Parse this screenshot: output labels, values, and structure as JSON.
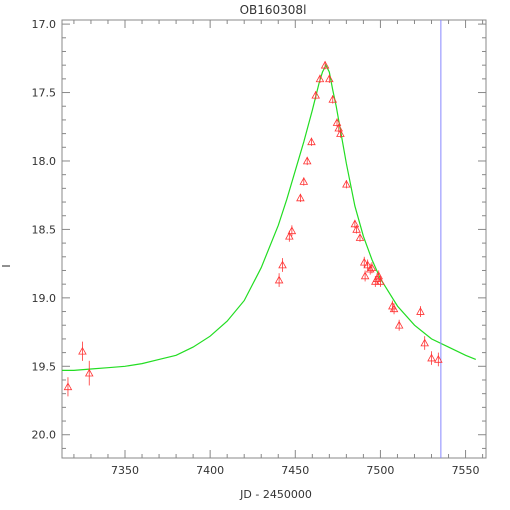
{
  "chart_data": {
    "type": "scatter",
    "title": "OB160308l",
    "xlabel": "JD - 2450000",
    "ylabel": "I",
    "xlim": [
      7313,
      7562
    ],
    "ylim": [
      20.17,
      16.97
    ],
    "y_inverted": true,
    "grid": false,
    "x_ticks": [
      7350,
      7400,
      7450,
      7500,
      7550
    ],
    "x_tick_labels": [
      "7350",
      "7400",
      "7450",
      "7500",
      "7550"
    ],
    "y_ticks": [
      17.0,
      17.5,
      18.0,
      18.5,
      19.0,
      19.5,
      20.0
    ],
    "y_tick_labels": [
      "17.0",
      "17.5",
      "18.0",
      "18.5",
      "19.0",
      "19.5",
      "20.0"
    ],
    "colors": {
      "points": "#ff3333",
      "model": "#22dd22",
      "marker_line": "#8888ff",
      "axis": "#888888"
    },
    "vertical_line_x": 7535.5,
    "model_curve": {
      "name": "",
      "x": [
        7313,
        7320,
        7330,
        7340,
        7350,
        7360,
        7370,
        7380,
        7390,
        7400,
        7410,
        7420,
        7430,
        7440,
        7445,
        7450,
        7455,
        7460,
        7462,
        7464,
        7466,
        7468,
        7470,
        7472,
        7474,
        7476,
        7480,
        7485,
        7490,
        7495,
        7500,
        7510,
        7520,
        7530,
        7540,
        7550,
        7556
      ],
      "y": [
        19.53,
        19.53,
        19.52,
        19.51,
        19.5,
        19.48,
        19.45,
        19.42,
        19.36,
        19.28,
        19.17,
        19.02,
        18.78,
        18.47,
        18.28,
        18.07,
        17.86,
        17.63,
        17.53,
        17.43,
        17.35,
        17.3,
        17.35,
        17.48,
        17.6,
        17.74,
        18.02,
        18.33,
        18.55,
        18.72,
        18.86,
        19.06,
        19.2,
        19.3,
        19.36,
        19.42,
        19.45
      ]
    },
    "points": [
      {
        "x": 7316.5,
        "y": 19.65,
        "err": 0.07
      },
      {
        "x": 7325,
        "y": 19.39,
        "err": 0.07
      },
      {
        "x": 7329,
        "y": 19.55,
        "err": 0.09
      },
      {
        "x": 7440.5,
        "y": 18.87,
        "err": 0.05
      },
      {
        "x": 7442.5,
        "y": 18.76,
        "err": 0.05
      },
      {
        "x": 7446.5,
        "y": 18.55,
        "err": 0.04
      },
      {
        "x": 7448,
        "y": 18.51,
        "err": 0.04
      },
      {
        "x": 7453,
        "y": 18.27,
        "err": 0.03
      },
      {
        "x": 7455,
        "y": 18.15,
        "err": 0.03
      },
      {
        "x": 7457,
        "y": 18.0,
        "err": 0.03
      },
      {
        "x": 7459.5,
        "y": 17.86,
        "err": 0.03
      },
      {
        "x": 7462,
        "y": 17.52,
        "err": 0.03
      },
      {
        "x": 7464.5,
        "y": 17.4,
        "err": 0.03
      },
      {
        "x": 7467.5,
        "y": 17.3,
        "err": 0.03
      },
      {
        "x": 7470,
        "y": 17.4,
        "err": 0.03
      },
      {
        "x": 7472,
        "y": 17.55,
        "err": 0.03
      },
      {
        "x": 7474.5,
        "y": 17.72,
        "err": 0.03
      },
      {
        "x": 7475.5,
        "y": 17.76,
        "err": 0.03
      },
      {
        "x": 7476.5,
        "y": 17.8,
        "err": 0.03
      },
      {
        "x": 7480,
        "y": 18.17,
        "err": 0.03
      },
      {
        "x": 7485,
        "y": 18.46,
        "err": 0.03
      },
      {
        "x": 7486,
        "y": 18.5,
        "err": 0.03
      },
      {
        "x": 7488,
        "y": 18.56,
        "err": 0.03
      },
      {
        "x": 7490.5,
        "y": 18.74,
        "err": 0.04
      },
      {
        "x": 7491,
        "y": 18.84,
        "err": 0.04
      },
      {
        "x": 7492.5,
        "y": 18.76,
        "err": 0.04
      },
      {
        "x": 7494,
        "y": 18.79,
        "err": 0.04
      },
      {
        "x": 7495,
        "y": 18.78,
        "err": 0.04
      },
      {
        "x": 7497,
        "y": 18.88,
        "err": 0.04
      },
      {
        "x": 7498,
        "y": 18.86,
        "err": 0.04
      },
      {
        "x": 7499,
        "y": 18.84,
        "err": 0.04
      },
      {
        "x": 7500,
        "y": 18.88,
        "err": 0.04
      },
      {
        "x": 7507,
        "y": 19.06,
        "err": 0.04
      },
      {
        "x": 7508,
        "y": 19.08,
        "err": 0.04
      },
      {
        "x": 7511,
        "y": 19.2,
        "err": 0.04
      },
      {
        "x": 7523.5,
        "y": 19.1,
        "err": 0.04
      },
      {
        "x": 7526,
        "y": 19.33,
        "err": 0.05
      },
      {
        "x": 7530,
        "y": 19.44,
        "err": 0.05
      },
      {
        "x": 7534,
        "y": 19.45,
        "err": 0.05
      }
    ]
  }
}
